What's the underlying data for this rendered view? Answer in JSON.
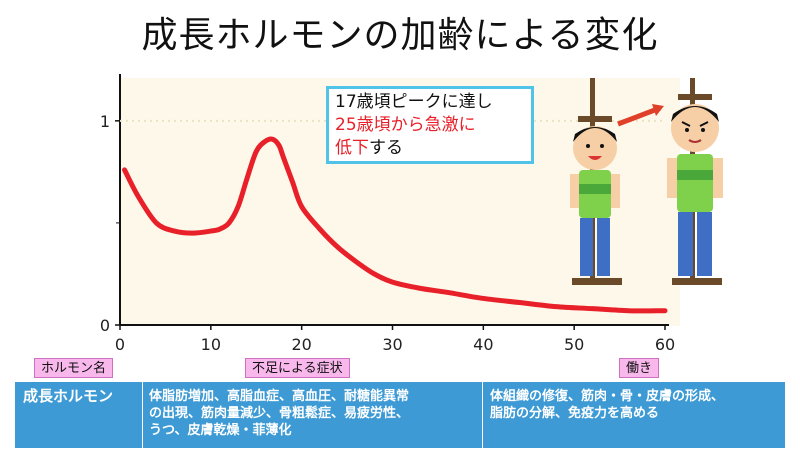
{
  "title": "成長ホルモンの加齢による変化",
  "callout": {
    "line1": "17歳頃ピークに達し",
    "line2": "25歳頃から急激に",
    "line3_red": "低下",
    "line3_rest": "する"
  },
  "chart_data": {
    "type": "line",
    "xlim": [
      0,
      60
    ],
    "ylim": [
      0,
      1.2
    ],
    "x_ticks": [
      0,
      10,
      20,
      30,
      40,
      50,
      60
    ],
    "y_ticks": [
      0,
      1
    ],
    "x_tick_labels": [
      "0",
      "10",
      "20",
      "30",
      "40",
      "50",
      "60"
    ],
    "y_tick_labels": [
      "0",
      "1"
    ],
    "grid": false,
    "series": [
      {
        "color": "#e8202a",
        "x": [
          0.5,
          2,
          4,
          6,
          8,
          10,
          11,
          12,
          13,
          14,
          15,
          16,
          16.8,
          17.5,
          18,
          19,
          20,
          22,
          24,
          26,
          28,
          30,
          33,
          36,
          40,
          44,
          48,
          52,
          56,
          60
        ],
        "y": [
          0.76,
          0.63,
          0.5,
          0.46,
          0.45,
          0.46,
          0.47,
          0.5,
          0.58,
          0.72,
          0.85,
          0.9,
          0.91,
          0.88,
          0.82,
          0.7,
          0.58,
          0.47,
          0.38,
          0.31,
          0.25,
          0.21,
          0.18,
          0.16,
          0.13,
          0.11,
          0.09,
          0.08,
          0.07,
          0.07
        ]
      }
    ]
  },
  "labels": {
    "hormone_name_header": "ホルモン名",
    "symptom_header": "不足による症状",
    "function_header": "働き"
  },
  "table": {
    "hormone": "成長ホルモン",
    "symptoms": [
      "体脂肪増加、高脂血症、高血圧、耐糖能異常",
      "の出現、筋肉量減少、骨粗鬆症、易疲労性、",
      "うつ、皮膚乾燥・菲薄化"
    ],
    "functions": [
      "体組織の修復、筋肉・骨・皮膚の形成、",
      "脂肪の分解、免疫力を高める"
    ]
  },
  "colors": {
    "plot_bg": "#fdf8e9",
    "curve": "#e8202a",
    "callout_border": "#4fc3e8",
    "tag_bg": "#f8b8ec",
    "table_bg": "#3d9ad4"
  }
}
